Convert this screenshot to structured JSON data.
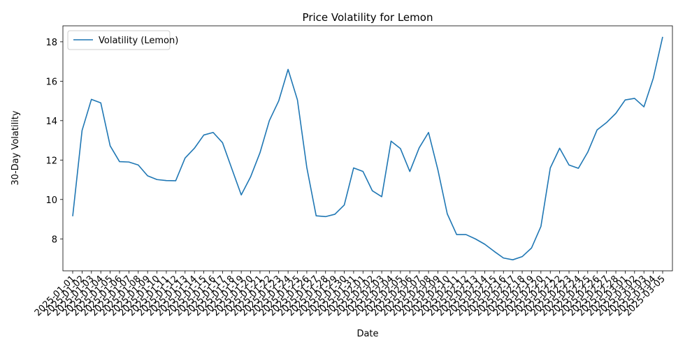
{
  "chart_data": {
    "type": "line",
    "title": "Price Volatility for Lemon",
    "xlabel": "Date",
    "ylabel": "30-Day Volatility",
    "x": [
      "2025-01-01",
      "2025-01-02",
      "2025-01-03",
      "2025-01-04",
      "2025-01-05",
      "2025-01-06",
      "2025-01-07",
      "2025-01-08",
      "2025-01-09",
      "2025-01-10",
      "2025-01-11",
      "2025-01-12",
      "2025-01-13",
      "2025-01-14",
      "2025-01-15",
      "2025-01-16",
      "2025-01-17",
      "2025-01-18",
      "2025-01-19",
      "2025-01-20",
      "2025-01-21",
      "2025-01-22",
      "2025-01-23",
      "2025-01-24",
      "2025-01-25",
      "2025-01-26",
      "2025-01-27",
      "2025-01-28",
      "2025-01-29",
      "2025-01-30",
      "2025-01-31",
      "2025-02-01",
      "2025-02-02",
      "2025-02-03",
      "2025-02-04",
      "2025-02-05",
      "2025-02-06",
      "2025-02-07",
      "2025-02-08",
      "2025-02-09",
      "2025-02-10",
      "2025-02-11",
      "2025-02-12",
      "2025-02-13",
      "2025-02-14",
      "2025-02-15",
      "2025-02-16",
      "2025-02-17",
      "2025-02-18",
      "2025-02-19",
      "2025-02-20",
      "2025-02-21",
      "2025-02-22",
      "2025-02-23",
      "2025-02-24",
      "2025-02-25",
      "2025-02-26",
      "2025-02-27",
      "2025-02-28",
      "2025-03-01",
      "2025-03-02",
      "2025-03-03",
      "2025-03-04",
      "2025-03-05"
    ],
    "series": [
      {
        "name": "Volatility (Lemon)",
        "color": "#1f77b4",
        "values": [
          9.15,
          13.5,
          15.08,
          14.9,
          12.72,
          11.92,
          11.9,
          11.75,
          11.2,
          11.01,
          10.96,
          10.95,
          12.1,
          12.6,
          13.27,
          13.4,
          12.88,
          11.55,
          10.23,
          11.15,
          12.37,
          14.0,
          15.0,
          16.6,
          15.05,
          11.62,
          9.17,
          9.13,
          9.25,
          9.72,
          11.6,
          11.42,
          10.44,
          10.14,
          12.96,
          12.58,
          11.42,
          12.62,
          13.4,
          11.5,
          9.27,
          8.22,
          8.22,
          8.0,
          7.73,
          7.37,
          7.03,
          6.94,
          7.1,
          7.54,
          8.63,
          11.6,
          12.6,
          11.75,
          11.58,
          12.4,
          13.53,
          13.9,
          14.37,
          15.05,
          15.13,
          14.7,
          16.15,
          18.25
        ]
      }
    ],
    "yticks": [
      8,
      10,
      12,
      14,
      16,
      18
    ],
    "ylim": [
      6.38,
      18.81
    ],
    "legend": "top-left",
    "grid": false
  }
}
